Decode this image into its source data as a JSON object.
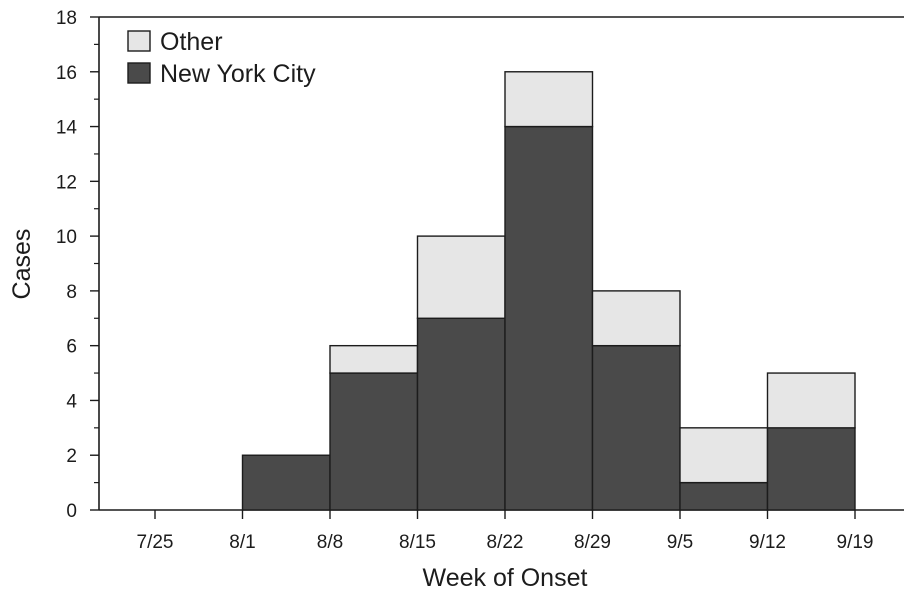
{
  "chart_data": {
    "type": "bar",
    "stacked": true,
    "histogram": true,
    "categories": [
      "7/25",
      "8/1",
      "8/8",
      "8/15",
      "8/22",
      "8/29",
      "9/5",
      "9/12",
      "9/19"
    ],
    "series": [
      {
        "name": "New York City",
        "values": [
          0,
          2,
          5,
          7,
          14,
          6,
          1,
          3,
          0
        ],
        "color": "#4a4a4a"
      },
      {
        "name": "Other",
        "values": [
          0,
          0,
          1,
          3,
          2,
          2,
          2,
          2,
          0
        ],
        "color": "#e6e6e6"
      }
    ],
    "title": "",
    "xlabel": "Week of Onset",
    "ylabel": "Cases",
    "ylim": [
      0,
      18
    ],
    "yticks": [
      0,
      2,
      4,
      6,
      8,
      10,
      12,
      14,
      16,
      18
    ],
    "legend": {
      "position": "top-left",
      "order": [
        "Other",
        "New York City"
      ]
    },
    "grid": false
  }
}
